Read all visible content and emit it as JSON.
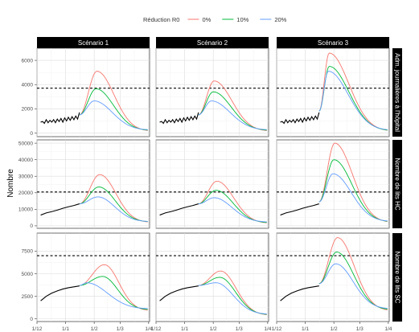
{
  "chart_data": {
    "type": "line",
    "ylabel": "Nombre",
    "legend": {
      "title": "Réduction R0",
      "placement": "top",
      "entries": [
        {
          "label": "0%",
          "color": "#f8766d"
        },
        {
          "label": "10%",
          "color": "#00ba38"
        },
        {
          "label": "20%",
          "color": "#619cff"
        }
      ]
    },
    "observed_color": "#000000",
    "columns": [
      "Scénario 1",
      "Scénario 2",
      "Scénario 3"
    ],
    "x_ticks": [
      "1/12",
      "1/1",
      "1/2",
      "1/3",
      "1/4"
    ],
    "x_range_days": [
      0,
      122
    ],
    "x_tick_days": [
      0,
      31,
      62,
      90,
      121
    ],
    "rows": [
      {
        "label": "Adm. journalières à l'hôpital",
        "ylim": [
          -300,
          7000
        ],
        "yticks": [
          0,
          2000,
          4000,
          6000
        ],
        "ytick_labels": [
          "0",
          "2000",
          "4000",
          "6000"
        ],
        "threshold": 3700,
        "threshold_style": "dashed",
        "observed": [
          [
            4,
            900
          ],
          [
            6,
            950
          ],
          [
            8,
            800
          ],
          [
            10,
            1100
          ],
          [
            12,
            850
          ],
          [
            14,
            1050
          ],
          [
            16,
            900
          ],
          [
            18,
            1100
          ],
          [
            20,
            850
          ],
          [
            22,
            1150
          ],
          [
            24,
            950
          ],
          [
            26,
            1200
          ],
          [
            28,
            900
          ],
          [
            30,
            1250
          ],
          [
            32,
            1000
          ],
          [
            34,
            1300
          ],
          [
            36,
            1050
          ],
          [
            38,
            1350
          ],
          [
            40,
            1100
          ],
          [
            42,
            1400
          ],
          [
            44,
            1150
          ],
          [
            46,
            1700
          ]
        ],
        "panels": [
          {
            "scenario": "Scénario 1",
            "series": [
              {
                "name": "0%",
                "peak": 5100,
                "peak_day": 65,
                "start": 1500,
                "end": 150
              },
              {
                "name": "10%",
                "peak": 3650,
                "peak_day": 64,
                "start": 1500,
                "end": 200
              },
              {
                "name": "20%",
                "peak": 2650,
                "peak_day": 62,
                "start": 1500,
                "end": 250
              }
            ]
          },
          {
            "scenario": "Scénario 2",
            "series": [
              {
                "name": "0%",
                "peak": 4300,
                "peak_day": 63,
                "start": 1500,
                "end": 150
              },
              {
                "name": "10%",
                "peak": 3400,
                "peak_day": 62,
                "start": 1500,
                "end": 200
              },
              {
                "name": "20%",
                "peak": 2650,
                "peak_day": 60,
                "start": 1500,
                "end": 250
              }
            ]
          },
          {
            "scenario": "Scénario 3",
            "series": [
              {
                "name": "0%",
                "peak": 6600,
                "peak_day": 57,
                "start": 1800,
                "end": 150
              },
              {
                "name": "10%",
                "peak": 5500,
                "peak_day": 57,
                "start": 1800,
                "end": 180
              },
              {
                "name": "20%",
                "peak": 5100,
                "peak_day": 56,
                "start": 1800,
                "end": 220
              }
            ]
          }
        ]
      },
      {
        "label": "Nombre de lits HC",
        "ylim": [
          -1500,
          52000
        ],
        "yticks": [
          0,
          10000,
          20000,
          30000,
          40000,
          50000
        ],
        "ytick_labels": [
          "0",
          "10000",
          "20000",
          "30000",
          "40000",
          "50000"
        ],
        "threshold": 20500,
        "threshold_style": "dashed",
        "observed": [
          [
            4,
            6500
          ],
          [
            10,
            7800
          ],
          [
            16,
            8600
          ],
          [
            22,
            9500
          ],
          [
            28,
            10600
          ],
          [
            34,
            11500
          ],
          [
            40,
            12300
          ],
          [
            46,
            13300
          ]
        ],
        "panels": [
          {
            "scenario": "Scénario 1",
            "series": [
              {
                "name": "0%",
                "peak": 31000,
                "peak_day": 68,
                "start": 13300,
                "end": 2000
              },
              {
                "name": "10%",
                "peak": 23500,
                "peak_day": 67,
                "start": 13300,
                "end": 2300
              },
              {
                "name": "20%",
                "peak": 17500,
                "peak_day": 66,
                "start": 13300,
                "end": 2500
              }
            ]
          },
          {
            "scenario": "Scénario 2",
            "series": [
              {
                "name": "0%",
                "peak": 27000,
                "peak_day": 66,
                "start": 13300,
                "end": 1500
              },
              {
                "name": "10%",
                "peak": 21500,
                "peak_day": 65,
                "start": 13300,
                "end": 1800
              },
              {
                "name": "20%",
                "peak": 17000,
                "peak_day": 63,
                "start": 13300,
                "end": 2200
              }
            ]
          },
          {
            "scenario": "Scénario 3",
            "series": [
              {
                "name": "0%",
                "peak": 50000,
                "peak_day": 63,
                "start": 14500,
                "end": 2000
              },
              {
                "name": "10%",
                "peak": 40000,
                "peak_day": 62,
                "start": 14500,
                "end": 2300
              },
              {
                "name": "20%",
                "peak": 31500,
                "peak_day": 61,
                "start": 14500,
                "end": 2600
              }
            ]
          }
        ]
      },
      {
        "label": "Nombre de lits SC",
        "ylim": [
          -300,
          9500
        ],
        "yticks": [
          0,
          2500,
          5000,
          7500
        ],
        "ytick_labels": [
          "0",
          "2500",
          "5000",
          "7500"
        ],
        "threshold": 7000,
        "threshold_style": "dashed",
        "observed": [
          [
            4,
            2000
          ],
          [
            10,
            2500
          ],
          [
            16,
            2850
          ],
          [
            22,
            3100
          ],
          [
            28,
            3300
          ],
          [
            34,
            3450
          ],
          [
            40,
            3550
          ],
          [
            46,
            3650
          ]
        ],
        "panels": [
          {
            "scenario": "Scénario 1",
            "series": [
              {
                "name": "0%",
                "peak": 6000,
                "peak_day": 73,
                "start": 3700,
                "end": 900
              },
              {
                "name": "10%",
                "peak": 4700,
                "peak_day": 71,
                "start": 3700,
                "end": 1000
              },
              {
                "name": "20%",
                "peak": 4000,
                "peak_day": 54,
                "start": 3700,
                "end": 1100
              }
            ]
          },
          {
            "scenario": "Scénario 2",
            "series": [
              {
                "name": "0%",
                "peak": 5300,
                "peak_day": 70,
                "start": 3700,
                "end": 400
              },
              {
                "name": "10%",
                "peak": 4600,
                "peak_day": 69,
                "start": 3700,
                "end": 450
              },
              {
                "name": "20%",
                "peak": 4000,
                "peak_day": 65,
                "start": 3700,
                "end": 500
              }
            ]
          },
          {
            "scenario": "Scénario 3",
            "series": [
              {
                "name": "0%",
                "peak": 9000,
                "peak_day": 66,
                "start": 3900,
                "end": 900
              },
              {
                "name": "10%",
                "peak": 7400,
                "peak_day": 65,
                "start": 3900,
                "end": 1000
              },
              {
                "name": "20%",
                "peak": 6100,
                "peak_day": 64,
                "start": 3900,
                "end": 1100
              }
            ]
          }
        ]
      }
    ]
  }
}
